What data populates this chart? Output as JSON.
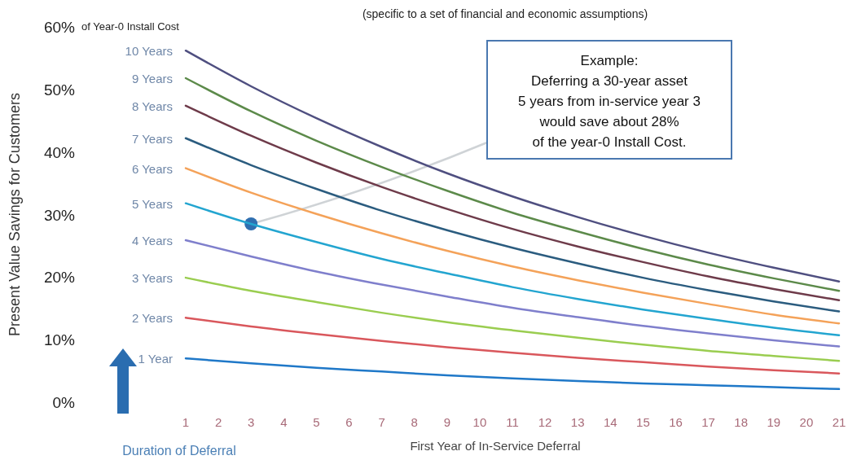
{
  "chart_data": {
    "type": "line",
    "subtitle": "(specific to a set of financial and economic assumptions)",
    "xlabel": "First Year of In-Service Deferral",
    "ylabel": "Present Value Savings  for Customers",
    "xlim": [
      1,
      21
    ],
    "xticks": [
      1,
      2,
      3,
      4,
      5,
      6,
      7,
      8,
      9,
      10,
      11,
      12,
      13,
      14,
      15,
      16,
      17,
      18,
      19,
      20,
      21
    ],
    "ylim": [
      0,
      60
    ],
    "yticks": [
      {
        "value": 0,
        "label": "0%"
      },
      {
        "value": 10,
        "label": "10%"
      },
      {
        "value": 20,
        "label": "20%"
      },
      {
        "value": 30,
        "label": "30%"
      },
      {
        "value": 40,
        "label": "40%"
      },
      {
        "value": 50,
        "label": "50%"
      },
      {
        "value": 60,
        "label": "60%"
      }
    ],
    "grid": false,
    "legend": false,
    "marker": "none",
    "line_style": "solid",
    "annotations": [
      "of Year-0 Install Cost",
      "Duration of Deferral",
      "Example:\nDeferring a 30-year asset\n5 years from in-service year 3\nwould save about 28%\nof the year-0 Install Cost."
    ],
    "x": [
      1,
      3,
      5,
      7,
      9,
      11,
      13,
      15,
      17,
      19,
      21
    ],
    "series": [
      {
        "name": "10 Years",
        "color": "#4f4f80",
        "values": [
          56.2,
          50.5,
          45.4,
          40.8,
          36.6,
          32.9,
          29.6,
          26.6,
          23.9,
          21.5,
          19.3
        ]
      },
      {
        "name": "9 Years",
        "color": "#5c8a4a",
        "values": [
          51.8,
          46.5,
          41.8,
          37.6,
          33.8,
          30.3,
          27.3,
          24.5,
          22.0,
          19.8,
          17.8
        ]
      },
      {
        "name": "8 Years",
        "color": "#6e3b4a",
        "values": [
          47.4,
          42.6,
          38.3,
          34.4,
          30.9,
          27.7,
          24.9,
          22.4,
          20.1,
          18.1,
          16.3
        ]
      },
      {
        "name": "7 Years",
        "color": "#2b5c7f",
        "values": [
          42.2,
          37.9,
          34.1,
          30.6,
          27.5,
          24.7,
          22.2,
          19.9,
          17.9,
          16.1,
          14.5
        ]
      },
      {
        "name": "6 Years",
        "color": "#f4a259",
        "values": [
          37.4,
          33.5,
          30.1,
          27.0,
          24.2,
          21.7,
          19.5,
          17.5,
          15.7,
          14.0,
          12.6
        ]
      },
      {
        "name": "5 Years",
        "color": "#23a5d0",
        "values": [
          31.8,
          28.5,
          25.6,
          22.9,
          20.6,
          18.4,
          16.5,
          14.8,
          13.3,
          11.9,
          10.7
        ]
      },
      {
        "name": "4 Years",
        "color": "#7f7fcc",
        "values": [
          25.9,
          23.3,
          20.9,
          18.8,
          16.9,
          15.1,
          13.6,
          12.2,
          11.0,
          9.9,
          8.9
        ]
      },
      {
        "name": "3 Years",
        "color": "#9acd50",
        "values": [
          19.9,
          17.8,
          16.0,
          14.3,
          12.8,
          11.5,
          10.3,
          9.2,
          8.2,
          7.4,
          6.6
        ]
      },
      {
        "name": "2 Years",
        "color": "#d9575c",
        "values": [
          13.5,
          12.1,
          10.9,
          9.8,
          8.8,
          7.9,
          7.1,
          6.4,
          5.7,
          5.1,
          4.6
        ]
      },
      {
        "name": "1 Year",
        "color": "#1f78c8",
        "values": [
          7.0,
          6.2,
          5.5,
          4.9,
          4.3,
          3.8,
          3.4,
          3.0,
          2.7,
          2.4,
          2.1
        ]
      }
    ]
  }
}
